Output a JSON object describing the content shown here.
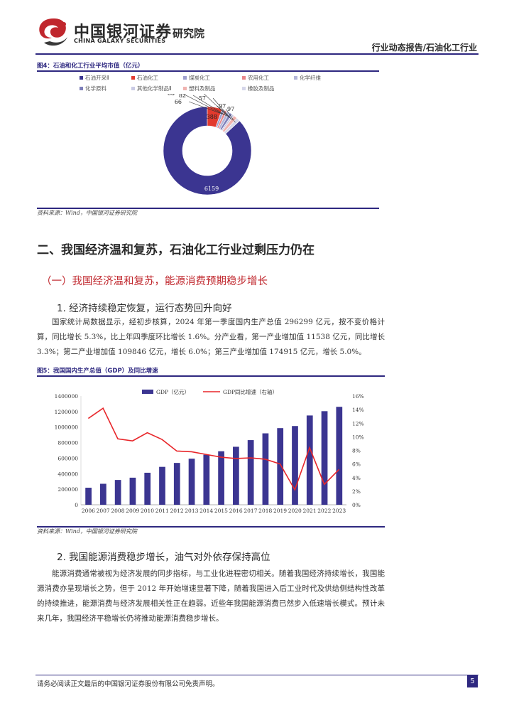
{
  "header": {
    "logo_cn": "中国银河证券",
    "logo_en": "CHINA GALAXY SECURITIES",
    "logo_institute": "研究院",
    "report_type": "行业动态报告/石油化工行业"
  },
  "figure4": {
    "title": "图4：石油和化工行业平均市值（亿元）",
    "legend": [
      {
        "name": "石油开采Ⅱ",
        "color": "#3b3591"
      },
      {
        "name": "石油化工",
        "color": "#e23a2e"
      },
      {
        "name": "煤炭化工",
        "color": "#9fa0cf"
      },
      {
        "name": "农用化工",
        "color": "#e8868a"
      },
      {
        "name": "化学纤维",
        "color": "#b3b5d9"
      },
      {
        "name": "化学原料",
        "color": "#7d7fba"
      },
      {
        "name": "其他化学制品Ⅱ",
        "color": "#c9cae4"
      },
      {
        "name": "塑料及制品",
        "color": "#f0b3b0"
      },
      {
        "name": "橡胶及制品",
        "color": "#d5d6ea"
      }
    ],
    "source": "资料来源：Wind，中国银河证券研究院"
  },
  "chart_data": [
    {
      "type": "pie",
      "title": "石油和化工行业平均市值（亿元）",
      "labels": [
        "石油开采Ⅱ",
        "石油化工",
        "煤炭化工",
        "农用化工",
        "化学纤维",
        "化学原料",
        "其他化学制品Ⅱ",
        "塑料及制品",
        "橡胶及制品"
      ],
      "values": [
        6159,
        388,
        68,
        66,
        82,
        75,
        57,
        97,
        97
      ],
      "value_labels": [
        "6159",
        "388",
        "68",
        "66",
        "82",
        "75",
        "57",
        "97",
        "97"
      ],
      "legend_position": "top"
    },
    {
      "type": "bar",
      "title": "我国国内生产总值（GDP）及同比增速",
      "categories": [
        "2006",
        "2007",
        "2008",
        "2009",
        "2010",
        "2011",
        "2012",
        "2013",
        "2014",
        "2015",
        "2016",
        "2017",
        "2018",
        "2019",
        "2020",
        "2021",
        "2022",
        "2023"
      ],
      "series": [
        {
          "name": "GDP（亿元）",
          "type": "bar",
          "axis": "left",
          "color": "#3b3591",
          "values": [
            219439,
            270092,
            319244,
            348518,
            412119,
            487940,
            538580,
            592963,
            643563,
            688858,
            746395,
            832036,
            919281,
            986515,
            1013567,
            1149237,
            1204724,
            1260582
          ]
        },
        {
          "name": "GDP同比增速（右轴）",
          "type": "line",
          "axis": "right",
          "color": "#e8262a",
          "values": [
            12.7,
            14.2,
            9.7,
            9.4,
            10.6,
            9.6,
            7.9,
            7.8,
            7.4,
            7.0,
            6.8,
            6.9,
            6.7,
            6.0,
            2.2,
            8.4,
            3.0,
            5.2
          ]
        }
      ],
      "ylim_left": [
        0,
        1400000
      ],
      "ylim_right": [
        0,
        16
      ],
      "yticks_left": [
        "0",
        "200000",
        "400000",
        "600000",
        "800000",
        "1000000",
        "1200000",
        "1400000"
      ],
      "yticks_right": [
        "0%",
        "2%",
        "4%",
        "6%",
        "8%",
        "10%",
        "12%",
        "14%",
        "16%"
      ],
      "legend_position": "top"
    }
  ],
  "section2": {
    "heading": "二、我国经济温和复苏，石油化工行业过剩压力仍在",
    "sub1": "（一）我国经济温和复苏，能源消费预期稳步增长",
    "item1": "1. 经济持续稳定恢复，运行态势回升向好",
    "para1": "国家统计局数据显示，经初步核算，2024 年第一季度国内生产总值 296299 亿元，按不变价格计算，同比增长 5.3%，比上年四季度环比增长 1.6%。分产业看，第一产业增加值 11538 亿元，同比增长 3.3%；第二产业增加值 109846 亿元，增长 6.0%；第三产业增加值 174915 亿元，增长 5.0%。",
    "item2": "2. 我国能源消费稳步增长，油气对外依存保持高位",
    "para2": "能源消费通常被视为经济发展的同步指标，与工业化进程密切相关。随着我国经济持续增长，我国能源消费亦呈现增长之势，但于 2012 年开始增速显著下降，随着我国进入后工业时代及供给侧结构性改革的持续推进，能源消费与经济发展相关性正在趋弱。近些年我国能源消费已然步入低速增长模式。预计未来几年，我国经济平稳增长仍将推动能源消费稳步增长。"
  },
  "figure5": {
    "title": "图5：我国国内生产总值（GDP）及同比增速",
    "source": "资料来源：Wind，中国银河证券研究院"
  },
  "footer": {
    "disclaimer": "请务必阅读正文最后的中国银河证券股份有限公司免责声明。",
    "page": "5"
  }
}
